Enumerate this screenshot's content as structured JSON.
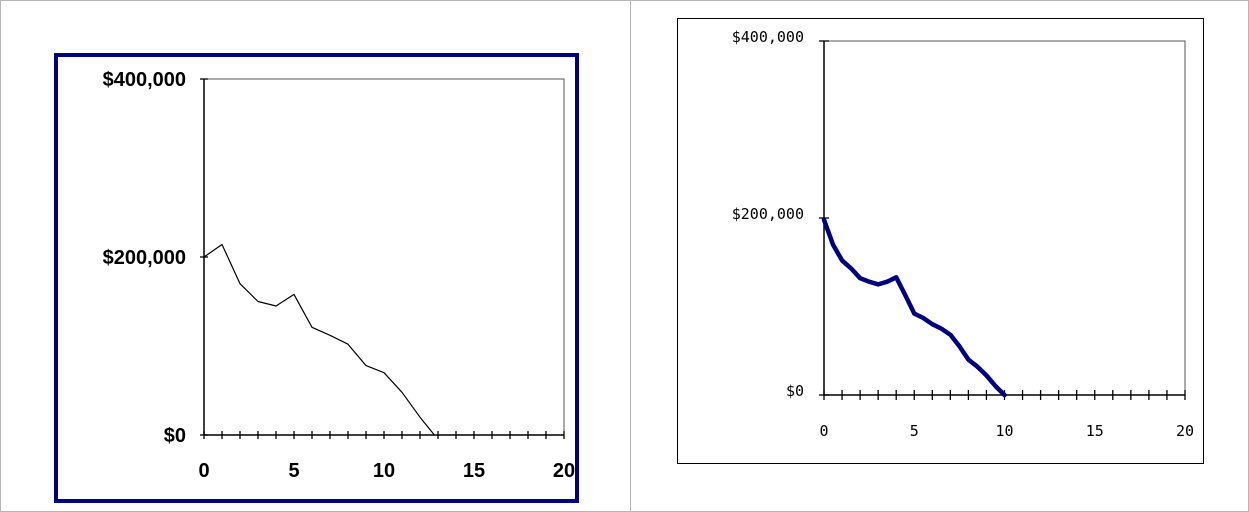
{
  "charts": [
    {
      "id": "left",
      "type": "line",
      "xlim": [
        0,
        20
      ],
      "ylim": [
        0,
        400000
      ],
      "x_ticks": [
        "0",
        "5",
        "10",
        "15",
        "20"
      ],
      "y_ticks": [
        "$0",
        "$200,000",
        "$400,000"
      ],
      "line_color": "#000000",
      "frame_color": "#00007f",
      "series": [
        {
          "x": [
            0,
            1,
            2,
            3,
            4,
            5,
            6,
            7,
            8,
            9,
            10,
            11,
            12,
            12.8
          ],
          "y": [
            200000,
            214000,
            170000,
            150000,
            145000,
            158000,
            121000,
            112000,
            102000,
            78000,
            70000,
            48000,
            20000,
            0
          ]
        }
      ]
    },
    {
      "id": "right",
      "type": "line",
      "xlim": [
        0,
        20
      ],
      "ylim": [
        0,
        400000
      ],
      "x_ticks": [
        "0",
        "5",
        "10",
        "15",
        "20"
      ],
      "y_ticks": [
        "$0",
        "$200,000",
        "$400,000"
      ],
      "line_color": "#00007f",
      "frame_color": "#000000",
      "series": [
        {
          "x": [
            0,
            0.5,
            1,
            1.5,
            2,
            2.5,
            3,
            3.5,
            4,
            4.5,
            5,
            5.5,
            6,
            6.5,
            7,
            7.5,
            8,
            8.5,
            9,
            9.5,
            10
          ],
          "y": [
            198000,
            170000,
            152000,
            143000,
            132000,
            128000,
            125000,
            128000,
            133000,
            113000,
            92000,
            87000,
            80000,
            75000,
            68000,
            55000,
            40000,
            32000,
            22000,
            10000,
            0
          ]
        }
      ]
    }
  ]
}
